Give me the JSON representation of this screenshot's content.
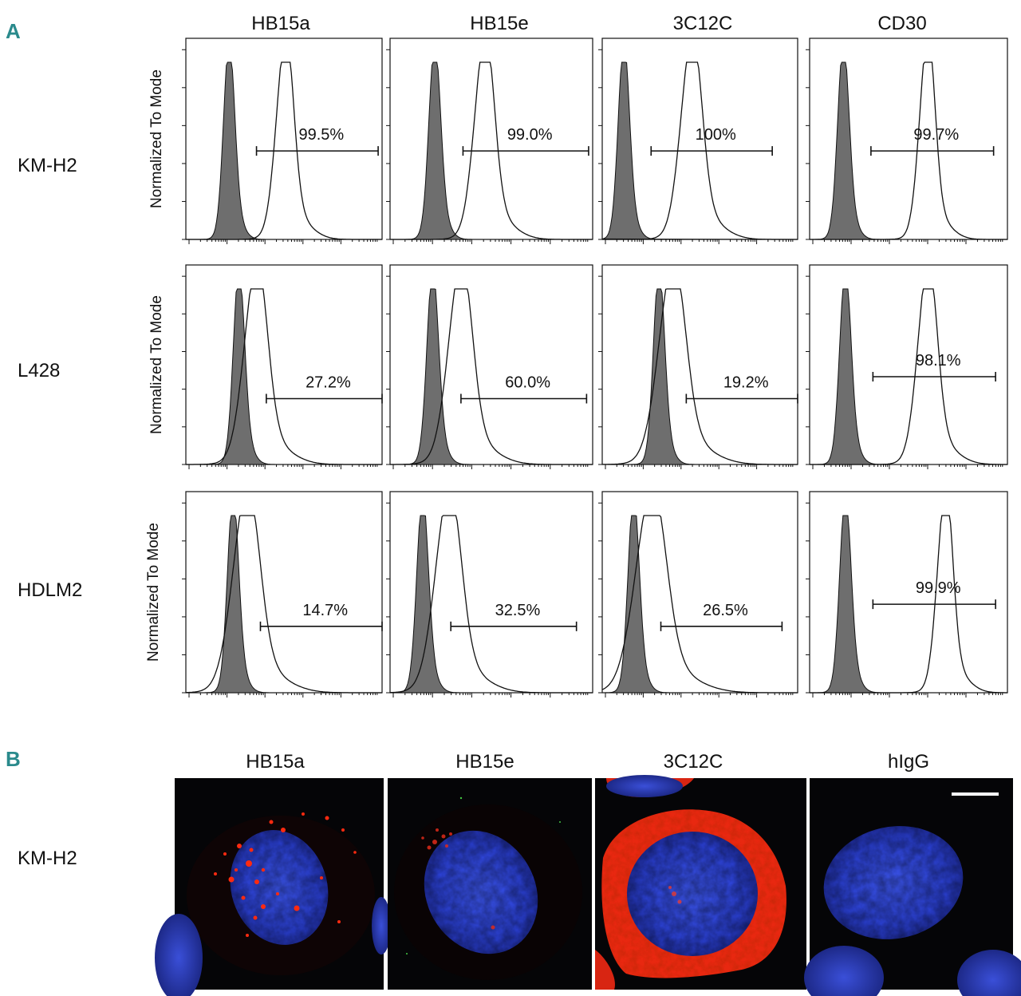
{
  "panel_a": {
    "letter": "A",
    "y_axis_label": "Normalized To Mode",
    "columns": [
      "HB15a",
      "HB15e",
      "3C12C",
      "CD30"
    ],
    "rows": [
      "KM-H2",
      "L428",
      "HDLM2"
    ]
  },
  "chart_data": {
    "type": "histogram-grid",
    "ylabel": "Normalized To Mode",
    "columns": [
      "HB15a",
      "HB15e",
      "3C12C",
      "CD30"
    ],
    "rows": [
      {
        "name": "KM-H2",
        "cells": [
          {
            "antibody": "HB15a",
            "gate_label": "99.5%",
            "gate_percent": 99.5,
            "control_peak": 0.22,
            "stain_peak": 0.5,
            "stain_width": 0.045
          },
          {
            "antibody": "HB15e",
            "gate_label": "99.0%",
            "gate_percent": 99.0,
            "control_peak": 0.22,
            "stain_peak": 0.46,
            "stain_width": 0.05
          },
          {
            "antibody": "3C12C",
            "gate_label": "100%",
            "gate_percent": 100,
            "control_peak": 0.11,
            "stain_peak": 0.45,
            "stain_width": 0.055
          },
          {
            "antibody": "CD30",
            "gate_label": "99.7%",
            "gate_percent": 99.7,
            "control_peak": 0.17,
            "stain_peak": 0.59,
            "stain_width": 0.04
          }
        ]
      },
      {
        "name": "L428",
        "cells": [
          {
            "antibody": "HB15a",
            "gate_label": "27.2%",
            "gate_percent": 27.2,
            "control_peak": 0.27,
            "stain_peak": 0.35,
            "stain_width": 0.06
          },
          {
            "antibody": "HB15e",
            "gate_label": "60.0%",
            "gate_percent": 60.0,
            "control_peak": 0.21,
            "stain_peak": 0.34,
            "stain_width": 0.06
          },
          {
            "antibody": "3C12C",
            "gate_label": "19.2%",
            "gate_percent": 19.2,
            "control_peak": 0.29,
            "stain_peak": 0.35,
            "stain_width": 0.07
          },
          {
            "antibody": "CD30",
            "gate_label": "98.1%",
            "gate_percent": 98.1,
            "control_peak": 0.18,
            "stain_peak": 0.59,
            "stain_width": 0.05
          }
        ]
      },
      {
        "name": "HDLM2",
        "cells": [
          {
            "antibody": "HB15a",
            "gate_label": "14.7%",
            "gate_percent": 14.7,
            "control_peak": 0.24,
            "stain_peak": 0.3,
            "stain_width": 0.07
          },
          {
            "antibody": "HB15e",
            "gate_label": "32.5%",
            "gate_percent": 32.5,
            "control_peak": 0.16,
            "stain_peak": 0.28,
            "stain_width": 0.065
          },
          {
            "antibody": "3C12C",
            "gate_label": "26.5%",
            "gate_percent": 26.5,
            "control_peak": 0.16,
            "stain_peak": 0.24,
            "stain_width": 0.08
          },
          {
            "antibody": "CD30",
            "gate_label": "99.9%",
            "gate_percent": 99.9,
            "control_peak": 0.18,
            "stain_peak": 0.68,
            "stain_width": 0.04
          }
        ]
      }
    ]
  },
  "panel_b": {
    "letter": "B",
    "row_label": "KM-H2",
    "columns": [
      "HB15a",
      "HB15e",
      "3C12C",
      "hIgG"
    ],
    "colors": {
      "nucleus": "#2a3fd6",
      "stain": "#ff2a10",
      "background": "#050507"
    }
  }
}
